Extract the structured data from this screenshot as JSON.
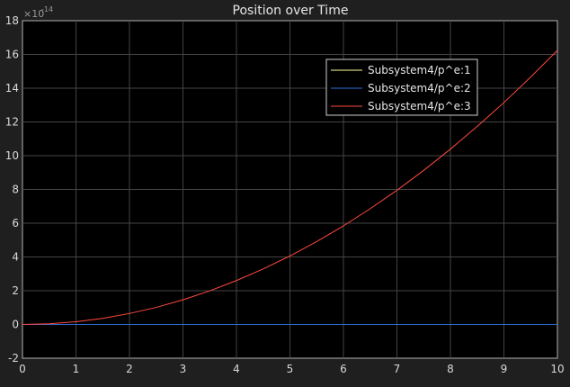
{
  "chart_data": {
    "type": "line",
    "title": "Position over Time",
    "xlabel": "",
    "ylabel": "",
    "y_exponent_base": "×10",
    "y_exponent_power": "-14",
    "xlim": [
      0,
      10
    ],
    "ylim": [
      -2,
      18
    ],
    "x_ticks": [
      0,
      1,
      2,
      3,
      4,
      5,
      6,
      7,
      8,
      9,
      10
    ],
    "y_ticks": [
      -2,
      0,
      2,
      4,
      6,
      8,
      10,
      12,
      14,
      16,
      18
    ],
    "grid": true,
    "legend_position": "top-right",
    "x": [
      0,
      0.5,
      1,
      1.5,
      2,
      2.5,
      3,
      3.5,
      4,
      4.5,
      5,
      5.5,
      6,
      6.5,
      7,
      7.5,
      8,
      8.5,
      9,
      9.5,
      10
    ],
    "series": [
      {
        "name": "Subsystem4/p^e:1",
        "color": "#ffff99",
        "values": [
          0,
          0,
          0,
          0,
          0,
          0,
          0,
          0,
          0,
          0,
          0,
          0,
          0,
          0,
          0,
          0,
          0,
          0,
          0,
          0,
          0
        ]
      },
      {
        "name": "Subsystem4/p^e:2",
        "color": "#2b6fd6",
        "values": [
          0,
          0,
          0,
          0,
          0,
          0,
          0,
          0,
          0,
          0,
          0,
          0,
          0,
          0,
          0,
          0,
          0,
          0,
          0,
          0,
          0
        ]
      },
      {
        "name": "Subsystem4/p^e:3",
        "color": "#ff4a3d",
        "values": [
          0,
          0.04,
          0.16,
          0.36,
          0.65,
          1.01,
          1.46,
          1.99,
          2.6,
          3.29,
          4.06,
          4.91,
          5.84,
          6.86,
          7.95,
          9.13,
          10.39,
          11.73,
          13.15,
          14.66,
          16.24
        ]
      }
    ]
  }
}
